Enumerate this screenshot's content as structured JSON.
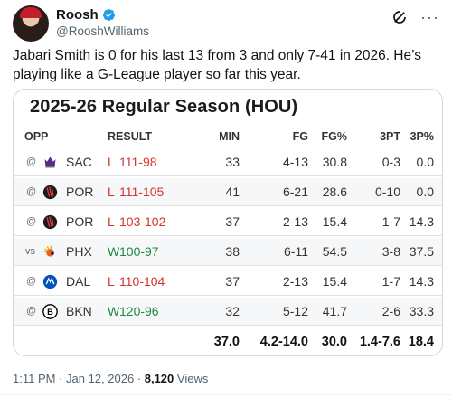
{
  "author": {
    "name": "Roosh",
    "handle": "@RooshWilliams"
  },
  "tweet": {
    "text": "Jabari Smith is 0 for his last 13 from 3 and only 7-41 in 2026. He’s playing like a G-League player so far this year."
  },
  "card": {
    "title": "2025-26 Regular Season (HOU)",
    "headers": {
      "opp": "OPP",
      "result": "RESULT",
      "min": "MIN",
      "fg": "FG",
      "fg_pct": "FG%",
      "three_pt": "3PT",
      "three_pct": "3P%"
    },
    "games": [
      {
        "prefix": "@",
        "team": "SAC",
        "logo_icon": "kings-logo-icon",
        "outcome": "L",
        "score": "111-98",
        "min": "33",
        "fg": "4-13",
        "fg_pct": "30.8",
        "three_pt": "0-3",
        "three_pct": "0.0"
      },
      {
        "prefix": "@",
        "team": "POR",
        "logo_icon": "blazers-logo-icon",
        "outcome": "L",
        "score": "111-105",
        "min": "41",
        "fg": "6-21",
        "fg_pct": "28.6",
        "three_pt": "0-10",
        "three_pct": "0.0"
      },
      {
        "prefix": "@",
        "team": "POR",
        "logo_icon": "blazers-logo-icon",
        "outcome": "L",
        "score": "103-102",
        "min": "37",
        "fg": "2-13",
        "fg_pct": "15.4",
        "three_pt": "1-7",
        "three_pct": "14.3"
      },
      {
        "prefix": "vs",
        "team": "PHX",
        "logo_icon": "suns-logo-icon",
        "outcome": "W",
        "score": "100-97",
        "min": "38",
        "fg": "6-11",
        "fg_pct": "54.5",
        "three_pt": "3-8",
        "three_pct": "37.5"
      },
      {
        "prefix": "@",
        "team": "DAL",
        "logo_icon": "mavericks-logo-icon",
        "outcome": "L",
        "score": "110-104",
        "min": "37",
        "fg": "2-13",
        "fg_pct": "15.4",
        "three_pt": "1-7",
        "three_pct": "14.3"
      },
      {
        "prefix": "@",
        "team": "BKN",
        "logo_icon": "nets-logo-icon",
        "outcome": "W",
        "score": "120-96",
        "min": "32",
        "fg": "5-12",
        "fg_pct": "41.7",
        "three_pt": "2-6",
        "three_pct": "33.3"
      }
    ],
    "totals": {
      "min": "37.0",
      "fg": "4.2-14.0",
      "fg_pct": "30.0",
      "three_pt": "1.4-7.6",
      "three_pct": "18.4"
    }
  },
  "meta": {
    "time_date": "1:11 PM · Jan 12, 2026 · ",
    "views_count": "8,120",
    "views_label": " Views"
  },
  "colors": {
    "win": "#1a8a3e",
    "loss": "#d6322b",
    "verified": "#1d9bf0",
    "muted": "#536471",
    "row_alt": "#f6f7f8"
  },
  "icons": [
    "verified-badge-icon",
    "grok-icon",
    "more-icon"
  ]
}
